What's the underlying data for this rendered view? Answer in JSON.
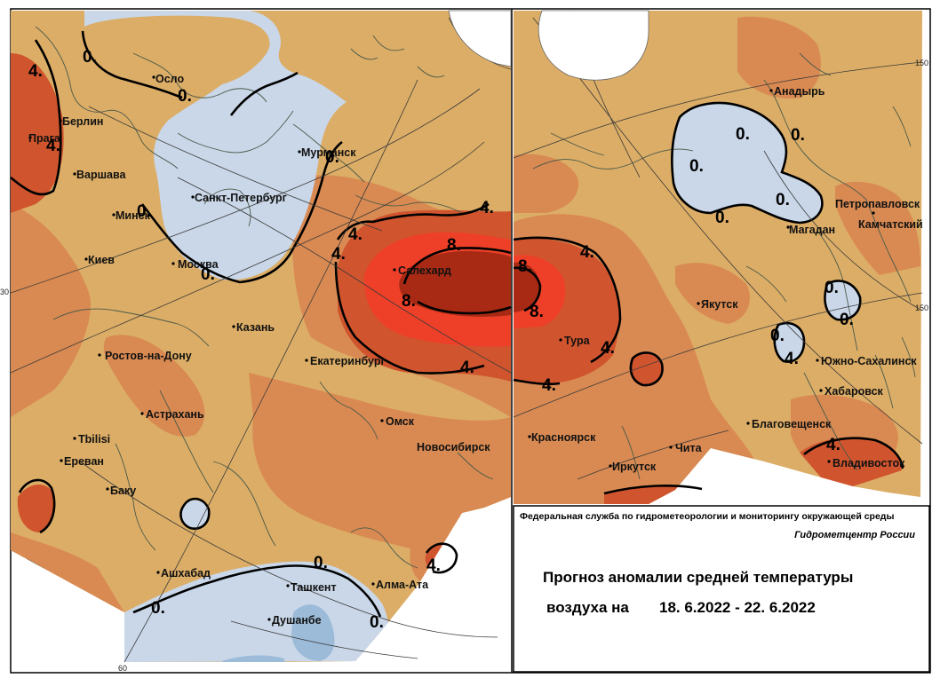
{
  "colors": {
    "background": "#ffffff",
    "below_zero": "#c9d7e8",
    "zero_to_two": "#dcad66",
    "two_to_four": "#d98a52",
    "four_to_six": "#d0552e",
    "six_to_eight": "#ee4028",
    "above_eight": "#a82a14",
    "isoline": "#000000",
    "coast": "#4a5a4a",
    "graticule": "#3a3a3a"
  },
  "cities_west": [
    {
      "name": "Осло"
    },
    {
      "name": "Берлин"
    },
    {
      "name": "Прага"
    },
    {
      "name": "Варшава"
    },
    {
      "name": "Минск"
    },
    {
      "name": "Санкт-Петербург"
    },
    {
      "name": "Мурманск"
    },
    {
      "name": "Киев"
    },
    {
      "name": "Москва"
    },
    {
      "name": "Казань"
    },
    {
      "name": "Салехард"
    },
    {
      "name": "Ростов-на-Дону"
    },
    {
      "name": "Екатеринбург"
    },
    {
      "name": "Астрахань"
    },
    {
      "name": "Омск"
    },
    {
      "name": "Tbilisi"
    },
    {
      "name": "Новосибирск"
    },
    {
      "name": "Ереван"
    },
    {
      "name": "Баку"
    },
    {
      "name": "Ашхабад"
    },
    {
      "name": "Ташкент"
    },
    {
      "name": "Алма-Ата"
    },
    {
      "name": "Душанбе"
    }
  ],
  "cities_east": [
    {
      "name": "Анадырь"
    },
    {
      "name": "Петропавловск"
    },
    {
      "name": "Камчатский"
    },
    {
      "name": "Магадан"
    },
    {
      "name": "Якутск"
    },
    {
      "name": "Тура"
    },
    {
      "name": "Южно-Сахалинск"
    },
    {
      "name": "Хабаровск"
    },
    {
      "name": "Благовещенск"
    },
    {
      "name": "Красноярск"
    },
    {
      "name": "Чита"
    },
    {
      "name": "Иркутск"
    },
    {
      "name": "Владивосток"
    }
  ],
  "isoline_labels_west": [
    "4.",
    "0.",
    "0.",
    "4.",
    "0.",
    "0.",
    "0.",
    "4.",
    "4.",
    "8.",
    "8.",
    "4.",
    "4.",
    "0.",
    "0.",
    "0.",
    "4."
  ],
  "isoline_labels_east": [
    "8.",
    "4.",
    "8.",
    "4.",
    "4.",
    "0.",
    "0.",
    "0.",
    "0.",
    "0.",
    "0.",
    "0.",
    "0.",
    "4."
  ],
  "graticule_labels": {
    "west_lon_30": "30",
    "west_lon_60": "60",
    "east_lon_150": "150",
    "east_lat_150": "150"
  },
  "info": {
    "agency": "Федеральная служба по гидрометеорологии и мониторингу окружающей среды",
    "center": "Гидрометцентр России",
    "title_line1": "Прогноз аномалии средней температуры",
    "title_line2_prefix": "воздуха на",
    "date_range": "18. 6.2022 - 22. 6.2022"
  }
}
